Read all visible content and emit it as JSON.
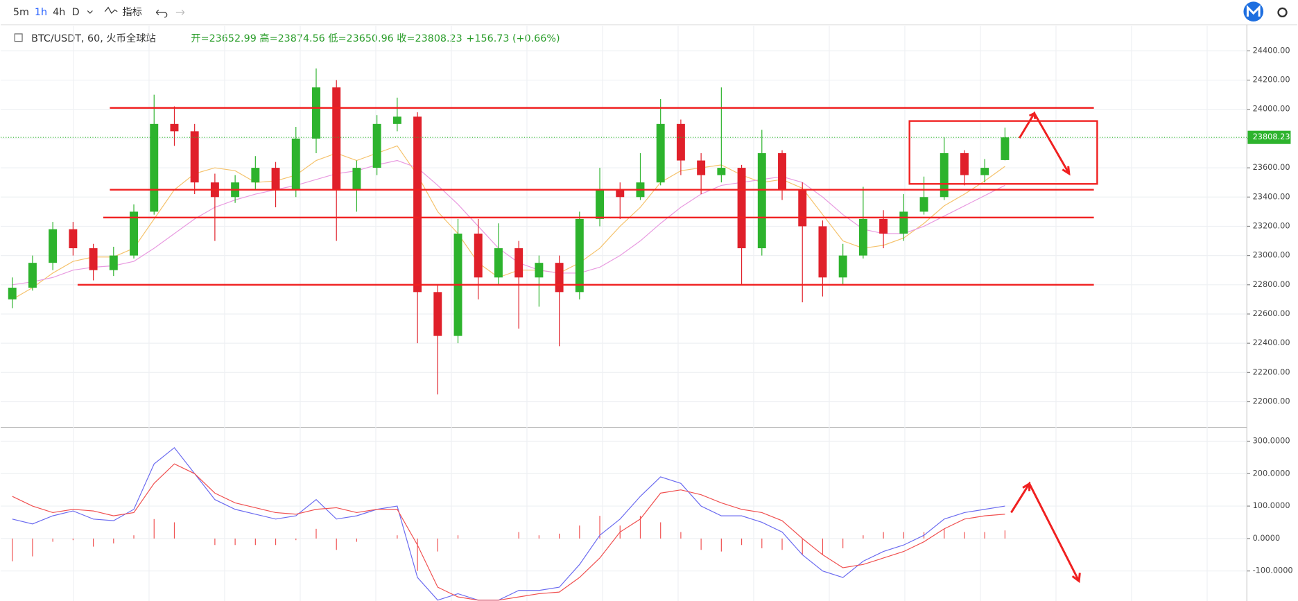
{
  "toolbar": {
    "intervals": [
      "5m",
      "1h",
      "4h",
      "D"
    ],
    "indicator": "指标"
  },
  "header": {
    "symbol": "BTC/USDT, 60, 火币全球站",
    "ohlc": [
      "开=23652.99",
      "高=23874.56",
      "低=23650.96",
      "收=23808.23"
    ],
    "change": "+156.73 (+0.66%)"
  },
  "chart_data": [
    {
      "type": "candlestick",
      "up_color": "#2db32d",
      "down_color": "#e0202a",
      "ylim": [
        21830,
        24550
      ],
      "yticks": [
        {
          "value": 22000,
          "label": "22000.00"
        },
        {
          "value": 22200,
          "label": "22200.00"
        },
        {
          "value": 22400,
          "label": "22400.00"
        },
        {
          "value": 22600,
          "label": "22600.00"
        },
        {
          "value": 22800,
          "label": "22800.00"
        },
        {
          "value": 23000,
          "label": "23000.00"
        },
        {
          "value": 23200,
          "label": "23200.00"
        },
        {
          "value": 23400,
          "label": "23400.00"
        },
        {
          "value": 23600,
          "label": "23600.00"
        },
        {
          "value": 23800,
          "label": "23800.00"
        },
        {
          "value": 24000,
          "label": "24000.00"
        },
        {
          "value": 24200,
          "label": "24200.00"
        },
        {
          "value": 24400,
          "label": "24400.00"
        }
      ],
      "grid": true,
      "last_price": 23808.23,
      "ohlc": [
        [
          22700,
          22850,
          22640,
          22780
        ],
        [
          22780,
          23000,
          22760,
          22950
        ],
        [
          22950,
          23230,
          22900,
          23180
        ],
        [
          23180,
          23230,
          23000,
          23050
        ],
        [
          23050,
          23080,
          22830,
          22900
        ],
        [
          22900,
          23060,
          22860,
          23000
        ],
        [
          23000,
          23350,
          22980,
          23300
        ],
        [
          23300,
          24100,
          23280,
          23900
        ],
        [
          23900,
          24020,
          23750,
          23850
        ],
        [
          23850,
          23900,
          23420,
          23500
        ],
        [
          23500,
          23560,
          23100,
          23400
        ],
        [
          23400,
          23550,
          23360,
          23500
        ],
        [
          23500,
          23680,
          23450,
          23600
        ],
        [
          23600,
          23640,
          23330,
          23450
        ],
        [
          23450,
          23880,
          23400,
          23800
        ],
        [
          23800,
          24280,
          23700,
          24150
        ],
        [
          24150,
          24200,
          23100,
          23450
        ],
        [
          23450,
          23650,
          23300,
          23600
        ],
        [
          23600,
          23960,
          23550,
          23900
        ],
        [
          23900,
          24080,
          23850,
          23950
        ],
        [
          23950,
          23980,
          22400,
          22750
        ],
        [
          22750,
          22800,
          22050,
          22450
        ],
        [
          22450,
          23250,
          22400,
          23150
        ],
        [
          23150,
          23250,
          22700,
          22850
        ],
        [
          22850,
          23220,
          22800,
          23050
        ],
        [
          23050,
          23100,
          22500,
          22850
        ],
        [
          22850,
          23000,
          22650,
          22950
        ],
        [
          22950,
          23000,
          22380,
          22750
        ],
        [
          22750,
          23300,
          22700,
          23250
        ],
        [
          23250,
          23600,
          23200,
          23450
        ],
        [
          23450,
          23500,
          23250,
          23400
        ],
        [
          23400,
          23700,
          23380,
          23500
        ],
        [
          23500,
          24070,
          23480,
          23900
        ],
        [
          23900,
          23930,
          23550,
          23650
        ],
        [
          23650,
          23700,
          23420,
          23550
        ],
        [
          23550,
          24150,
          23500,
          23600
        ],
        [
          23600,
          23620,
          22800,
          23050
        ],
        [
          23050,
          23860,
          23000,
          23700
        ],
        [
          23700,
          23720,
          23380,
          23450
        ],
        [
          23450,
          23500,
          22680,
          23200
        ],
        [
          23200,
          23240,
          22720,
          22850
        ],
        [
          22850,
          23080,
          22800,
          23000
        ],
        [
          23000,
          23470,
          22980,
          23250
        ],
        [
          23250,
          23310,
          23050,
          23150
        ],
        [
          23150,
          23420,
          23100,
          23300
        ],
        [
          23300,
          23540,
          23280,
          23400
        ],
        [
          23400,
          23810,
          23380,
          23700
        ],
        [
          23700,
          23720,
          23480,
          23550
        ],
        [
          23550,
          23660,
          23500,
          23600
        ],
        [
          23652.99,
          23874.56,
          23650.96,
          23808.23
        ]
      ],
      "series": [
        {
          "color": "#f5c26b",
          "values": [
            22700,
            22780,
            22880,
            22960,
            22990,
            22990,
            23050,
            23250,
            23450,
            23560,
            23600,
            23580,
            23500,
            23510,
            23550,
            23650,
            23700,
            23650,
            23700,
            23750,
            23550,
            23300,
            23150,
            22950,
            22850,
            22900,
            22900,
            22880,
            22950,
            23050,
            23200,
            23330,
            23500,
            23580,
            23600,
            23620,
            23550,
            23500,
            23520,
            23460,
            23280,
            23100,
            23050,
            23070,
            23120,
            23220,
            23340,
            23420,
            23510,
            23610
          ]
        },
        {
          "color": "#e89ae0",
          "values": [
            22800,
            22820,
            22850,
            22900,
            22920,
            22930,
            22960,
            23050,
            23150,
            23250,
            23330,
            23380,
            23420,
            23450,
            23480,
            23520,
            23560,
            23580,
            23620,
            23650,
            23600,
            23480,
            23350,
            23200,
            23050,
            22950,
            22900,
            22880,
            22880,
            22920,
            23000,
            23100,
            23220,
            23330,
            23420,
            23480,
            23500,
            23520,
            23540,
            23500,
            23400,
            23280,
            23180,
            23150,
            23150,
            23200,
            23270,
            23340,
            23410,
            23480
          ]
        }
      ],
      "levels": [
        24010,
        23450,
        23260,
        22800
      ],
      "box": [
        23490,
        23920
      ],
      "annotation_color": "#f02020"
    },
    {
      "type": "macd",
      "ylim": [
        -190,
        340
      ],
      "yticks": [
        {
          "value": -100,
          "label": "-100.0000"
        },
        {
          "value": 0,
          "label": "0.0000"
        },
        {
          "value": 100,
          "label": "100.0000"
        },
        {
          "value": 200,
          "label": "200.0000"
        },
        {
          "value": 300,
          "label": "300.0000"
        }
      ],
      "series": [
        {
          "color": "#6b6bf0",
          "values": [
            60,
            45,
            70,
            85,
            60,
            55,
            90,
            230,
            280,
            200,
            120,
            90,
            75,
            60,
            70,
            120,
            60,
            70,
            90,
            100,
            -120,
            -190,
            -170,
            -190,
            -190,
            -160,
            -160,
            -150,
            -80,
            10,
            60,
            130,
            190,
            170,
            100,
            70,
            70,
            50,
            20,
            -50,
            -100,
            -120,
            -70,
            -40,
            -20,
            10,
            60,
            80,
            90,
            100
          ]
        },
        {
          "color": "#f05050",
          "values": [
            130,
            100,
            80,
            90,
            85,
            70,
            80,
            170,
            230,
            200,
            140,
            110,
            95,
            80,
            75,
            90,
            95,
            80,
            90,
            90,
            -20,
            -150,
            -180,
            -190,
            -190,
            -180,
            -170,
            -165,
            -120,
            -60,
            20,
            60,
            140,
            150,
            135,
            110,
            90,
            80,
            55,
            0,
            -50,
            -90,
            -80,
            -60,
            -40,
            -10,
            30,
            60,
            70,
            75
          ]
        }
      ],
      "hist": {
        "color": "#f05050",
        "values": [
          -70,
          -55,
          -10,
          -5,
          -25,
          -15,
          10,
          60,
          50,
          0,
          -20,
          -20,
          -20,
          -20,
          -5,
          30,
          -35,
          -10,
          0,
          10,
          -100,
          -40,
          10,
          0,
          0,
          20,
          10,
          15,
          40,
          70,
          40,
          70,
          50,
          20,
          -35,
          -40,
          -20,
          -30,
          -35,
          -50,
          -50,
          -30,
          10,
          20,
          20,
          20,
          30,
          20,
          20,
          25
        ]
      }
    }
  ]
}
